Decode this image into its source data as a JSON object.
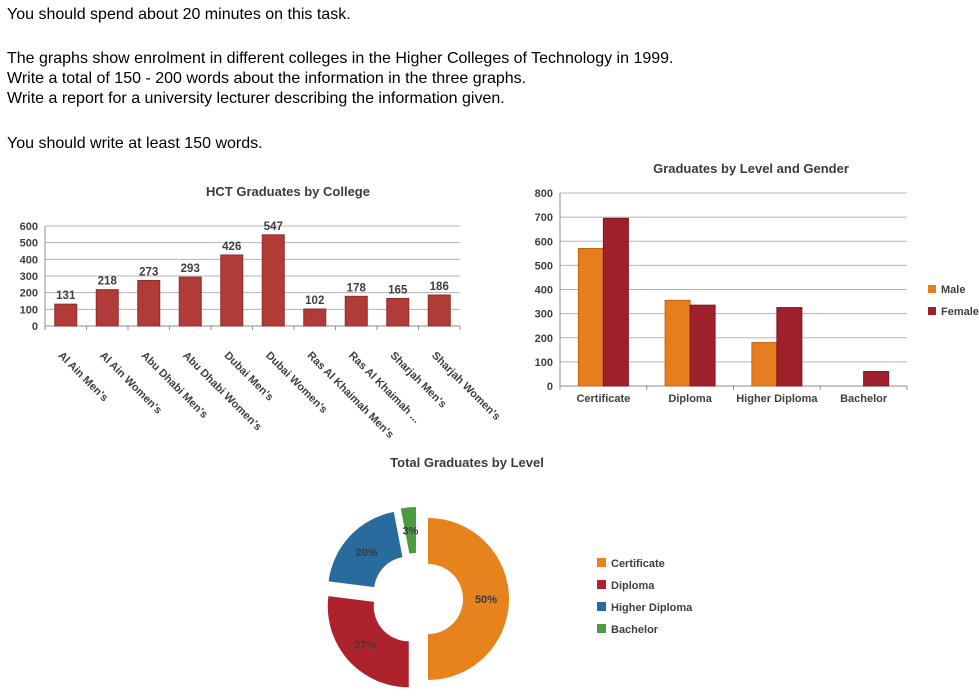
{
  "instructions": {
    "line1": "You should spend about 20 minutes on this task.",
    "line2": "The graphs show enrolment in different colleges in the Higher Colleges of Technology in 1999.",
    "line3": "Write a total of 150 - 200 words about the information in the three graphs.",
    "line4": "Write a report for a university lecturer describing the information given.",
    "line5": "You should write at least 150 words."
  },
  "styles": {
    "title_color": "#3b3b3b",
    "label_color": "#3f3f3f",
    "grid_color": "#b5b5b5",
    "axis_color": "#8e8e8e"
  },
  "chart_data": [
    {
      "id": "college",
      "type": "bar",
      "title": "HCT Graduates by College",
      "categories": [
        "Al Ain Men's",
        "Al Ain Women's",
        "Abu Dhabi Men's",
        "Abu Dhabi Women's",
        "Dubai Men's",
        "Dubai Women's",
        "Ras Al Khaimah Men's",
        "Ras Al Khaimah ...",
        "Sharjah Men's",
        "Sharjah Women's"
      ],
      "values": [
        131,
        218,
        273,
        293,
        426,
        547,
        102,
        178,
        165,
        186
      ],
      "xlabel": "",
      "ylabel": "",
      "ylim": [
        0,
        600
      ],
      "ytick_step": 100,
      "grid": true,
      "data_labels": true,
      "bar_color": "#b13b37",
      "bar_border": "#8f2d2a",
      "legend_position": "none"
    },
    {
      "id": "gender",
      "type": "bar",
      "title": "Graduates by Level and Gender",
      "categories": [
        "Certificate",
        "Diploma",
        "Higher Diploma",
        "Bachelor"
      ],
      "series": [
        {
          "name": "Male",
          "values": [
            570,
            355,
            180,
            0
          ],
          "color": "#e67e1f",
          "border": "#c06314"
        },
        {
          "name": "Female",
          "values": [
            695,
            335,
            325,
            60
          ],
          "color": "#9e202d",
          "border": "#7c1723"
        }
      ],
      "xlabel": "",
      "ylabel": "",
      "ylim": [
        0,
        800
      ],
      "ytick_step": 100,
      "grid": true,
      "data_labels": false,
      "legend_position": "right"
    },
    {
      "id": "level",
      "type": "pie",
      "donut": true,
      "exploded": true,
      "title": "Total Graduates by Level",
      "categories": [
        "Certificate",
        "Diploma",
        "Higher Diploma",
        "Bachelor"
      ],
      "values_pct": [
        50,
        27,
        20,
        3
      ],
      "slice_labels": [
        "50%",
        "27%",
        "20%",
        "3%"
      ],
      "colors": [
        "#e8821d",
        "#ae222e",
        "#2a6b9e",
        "#4a9b42"
      ],
      "legend_position": "right"
    }
  ]
}
